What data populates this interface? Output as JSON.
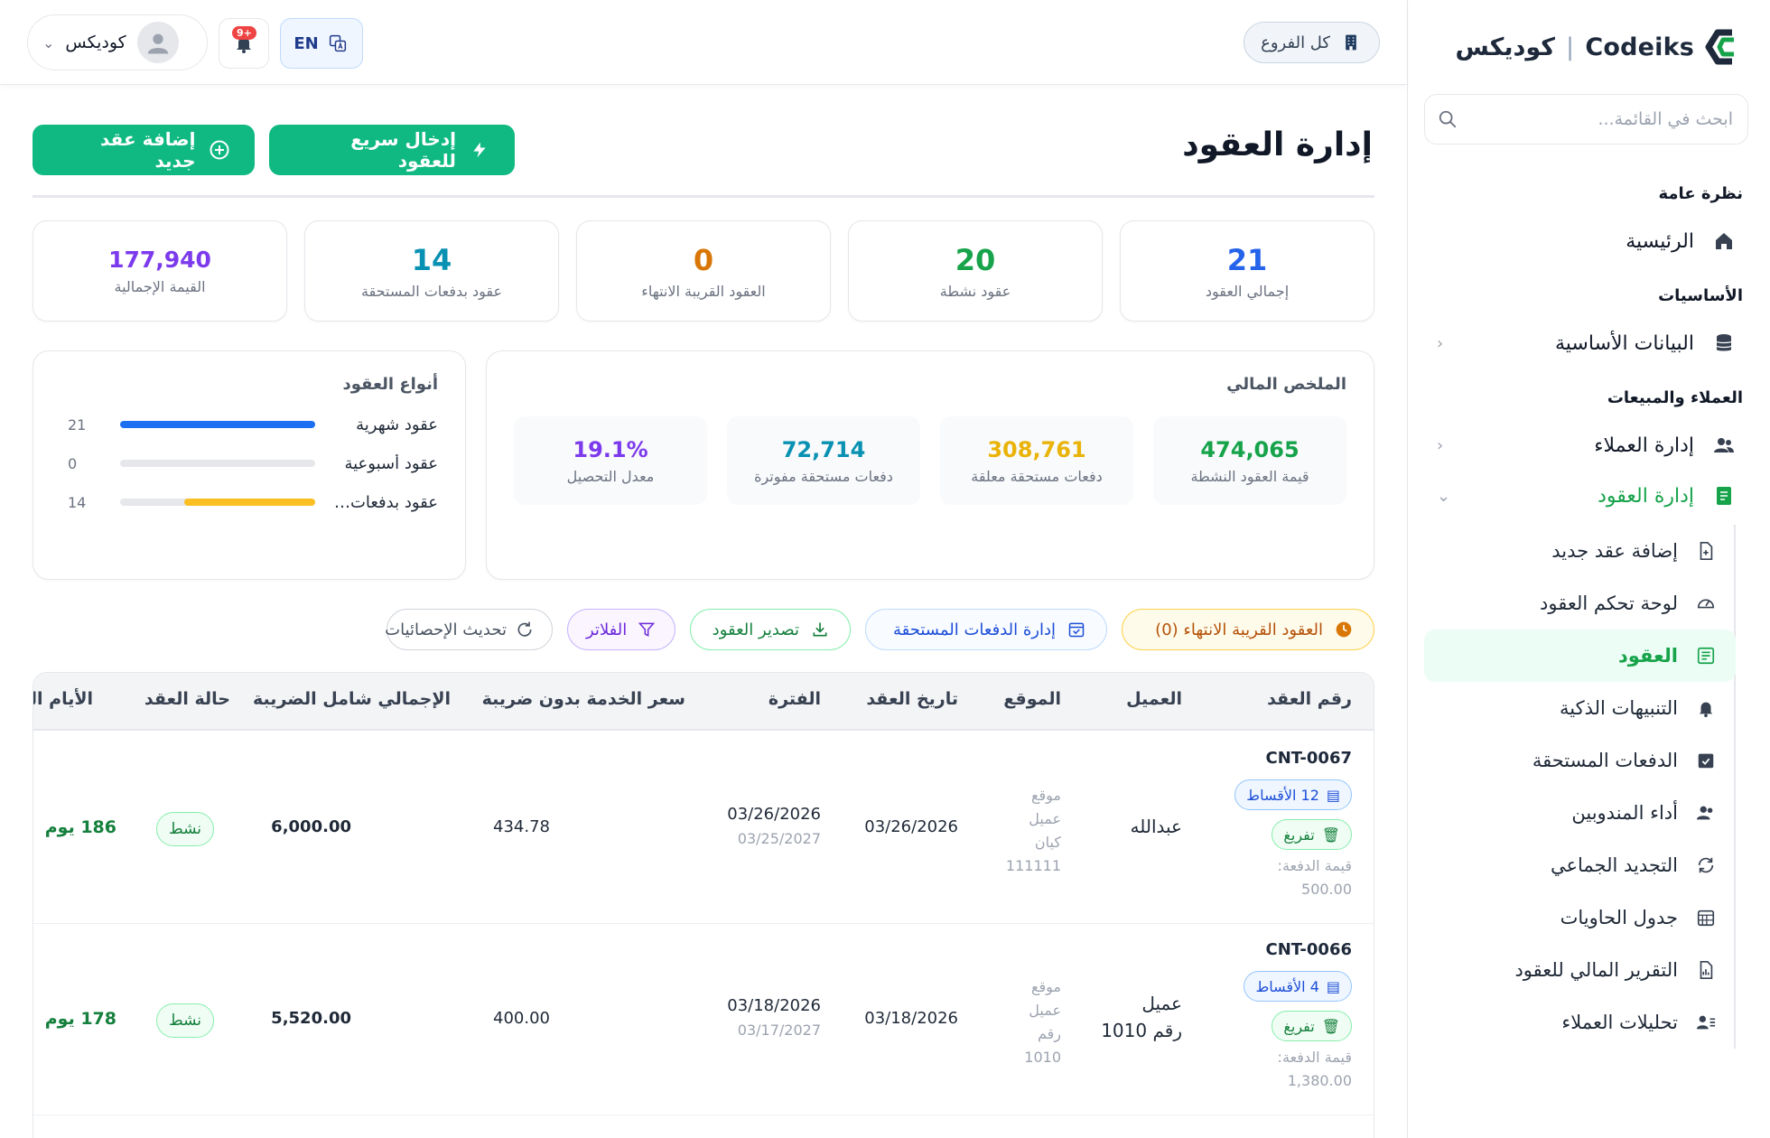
{
  "brand": {
    "name_ar": "كوديكس",
    "separator": "|",
    "name_en": "Codeiks",
    "colors": {
      "green": "#16a34a",
      "navy": "#1e293b"
    }
  },
  "sidebar": {
    "search_placeholder": "ابحث في القائمة...",
    "sections": {
      "overview": "نظرة عامة",
      "basics": "الأساسيات",
      "clients_sales": "العملاء والمبيعات"
    },
    "items": {
      "home": "الرئيسية",
      "master_data": "البيانات الأساسية",
      "clients": "إدارة العملاء",
      "contracts": "إدارة العقود"
    },
    "sub_items": [
      {
        "label": "إضافة عقد جديد",
        "icon": "file-plus-icon"
      },
      {
        "label": "لوحة تحكم العقود",
        "icon": "gauge-icon"
      },
      {
        "label": "العقود",
        "icon": "list-doc-icon",
        "active": true
      },
      {
        "label": "التنبيهات الذكية",
        "icon": "bell-icon"
      },
      {
        "label": "الدفعات المستحقة",
        "icon": "calendar-check-icon"
      },
      {
        "label": "أداء المندوبين",
        "icon": "users-icon"
      },
      {
        "label": "التجديد الجماعي",
        "icon": "refresh-icon"
      },
      {
        "label": "جدول الحاويات",
        "icon": "grid-calendar-icon"
      },
      {
        "label": "التقرير المالي للعقود",
        "icon": "report-icon"
      },
      {
        "label": "تحليلات العملاء",
        "icon": "user-list-icon"
      }
    ]
  },
  "topbar": {
    "branch_label": "كل الفروع",
    "lang_label": "EN",
    "notif_count": "+9",
    "user_name": "كوديكس"
  },
  "page": {
    "title": "إدارة العقود",
    "quick_entry_btn": "إدخال سريع للعقود",
    "add_contract_btn": "إضافة عقد جديد"
  },
  "stats": [
    {
      "value": "21",
      "label": "إجمالي العقود",
      "color": "#2563eb"
    },
    {
      "value": "20",
      "label": "عقود نشطة",
      "color": "#16a34a"
    },
    {
      "value": "0",
      "label": "العقود القريبة الانتهاء",
      "color": "#d97706"
    },
    {
      "value": "14",
      "label": "عقود بدفعات المستحقة",
      "color": "#0891b2"
    },
    {
      "value": "177,940",
      "label": "القيمة الإجمالية",
      "color": "#7c3aed"
    }
  ],
  "financial_summary": {
    "title": "الملخص المالي",
    "tiles": [
      {
        "value": "474,065",
        "label": "قيمة العقود النشطة",
        "color": "#16a34a"
      },
      {
        "value": "308,761",
        "label": "دفعات مستحقة معلقة",
        "color": "#eab308"
      },
      {
        "value": "72,714",
        "label": "دفعات مستحقة مفوترة",
        "color": "#0891b2"
      },
      {
        "value": "19.1%",
        "label": "معدل التحصيل",
        "color": "#7c3aed"
      }
    ]
  },
  "contract_types": {
    "title": "أنواع العقود",
    "rows": [
      {
        "name": "عقود شهرية",
        "count": "21",
        "fill": 1.0,
        "color": "#1d6ff2"
      },
      {
        "name": "عقود أسبوعية",
        "count": "0",
        "fill": 0.0,
        "color": "#1d6ff2"
      },
      {
        "name": "عقود بدفعات ال...",
        "count": "14",
        "fill": 0.67,
        "color": "#fbbf24"
      }
    ]
  },
  "filters": {
    "expiring": "العقود القريبة الانتهاء (0)",
    "due_payments": "إدارة الدفعات المستحقة",
    "export": "تصدير العقود",
    "filters": "الفلاتر",
    "refresh": "تحديث الإحصائيات"
  },
  "table": {
    "headers": {
      "number": "رقم العقد",
      "client": "العميل",
      "location": "الموقع",
      "date": "تاريخ العقد",
      "period": "الفترة",
      "price": "سعر الخدمة بدون ضريبة",
      "total": "الإجمالي شامل الضريبة",
      "status": "حالة العقد",
      "days": "الأيام المت"
    },
    "rows": [
      {
        "number": "CNT-0067",
        "installments": "12 الأقساط",
        "type": "تفريغ",
        "payment_label": "قيمة الدفعة:",
        "payment_value": "500.00",
        "client_line1": "عبدالله",
        "client_line2": "",
        "location": [
          "موقع",
          "عميل",
          "كيان",
          "111111"
        ],
        "date": "03/26/2026",
        "period_start": "03/26/2026",
        "period_end": "03/25/2027",
        "price": "434.78",
        "total": "6,000.00",
        "status": "نشط",
        "days": "186 يوم"
      },
      {
        "number": "CNT-0066",
        "installments": "4 الأقساط",
        "type": "تفريغ",
        "payment_label": "قيمة الدفعة:",
        "payment_value": "1,380.00",
        "client_line1": "عميل",
        "client_line2": "رقم 1010",
        "location": [
          "موقع",
          "عميل",
          "رقم",
          "1010"
        ],
        "date": "03/18/2026",
        "period_start": "03/18/2026",
        "period_end": "03/17/2027",
        "price": "400.00",
        "total": "5,520.00",
        "status": "نشط",
        "days": "178 يوم"
      }
    ]
  }
}
